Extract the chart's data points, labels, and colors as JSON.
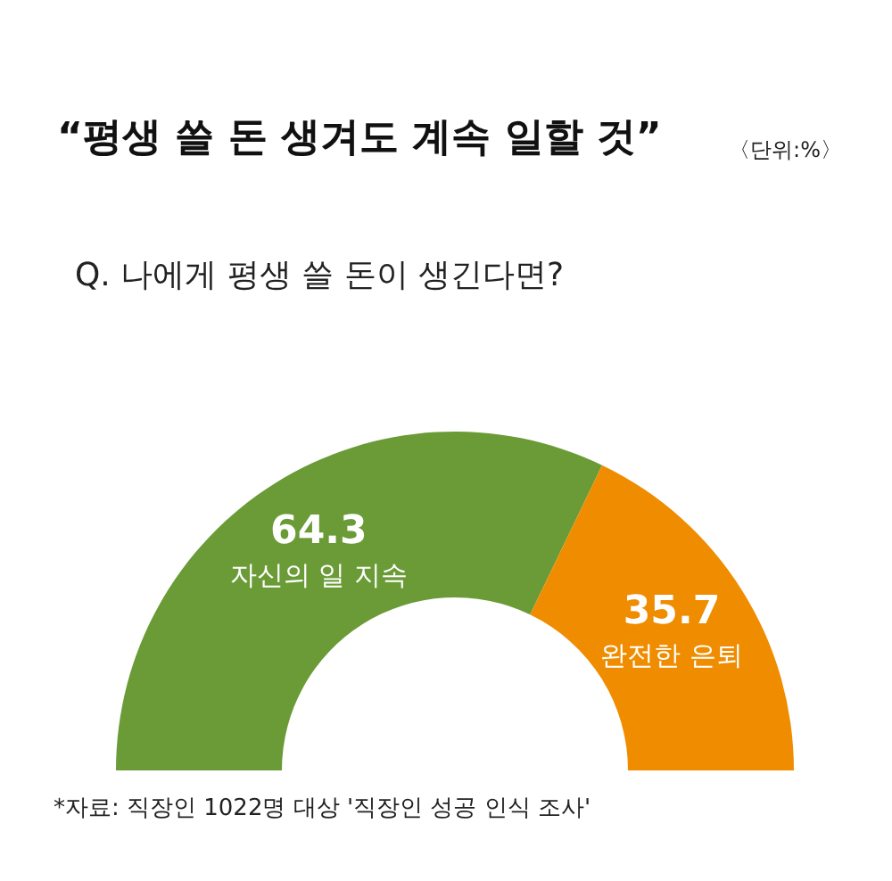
{
  "chart_data": {
    "type": "donut",
    "title": "“평생 쓸 돈 생겨도 계속 일할 것”",
    "subtitle": "Q. 나에게 평생 쓸 돈이 생긴다면?",
    "categories": [
      "자신의 일 지속",
      "완전한 은퇴"
    ],
    "values": [
      64.3,
      35.7
    ],
    "colors": [
      "#6b9b37",
      "#f08c00"
    ],
    "data_labels": true,
    "annotations": [
      "〈단위:%〉",
      "*자료: 직장인 1022명 대상 '직장인 성공 인식 조사'"
    ]
  }
}
